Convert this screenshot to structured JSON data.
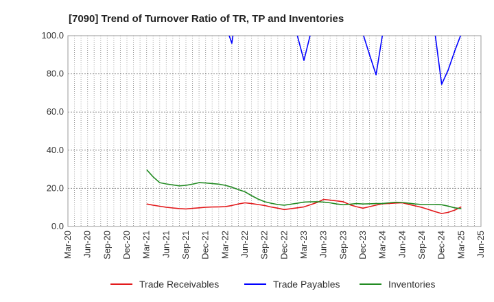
{
  "chart_data": {
    "type": "line",
    "title": "[7090]  Trend of Turnover Ratio of TR, TP and Inventories",
    "xlabel": "",
    "ylabel": "",
    "ylim": [
      0,
      100
    ],
    "yticks": [
      "0.0",
      "20.0",
      "40.0",
      "60.0",
      "80.0",
      "100.0"
    ],
    "xticks": [
      "Mar-20",
      "Jun-20",
      "Sep-20",
      "Dec-20",
      "Mar-21",
      "Jun-21",
      "Sep-21",
      "Dec-21",
      "Mar-22",
      "Jun-22",
      "Sep-22",
      "Dec-22",
      "Mar-23",
      "Jun-23",
      "Sep-23",
      "Dec-23",
      "Mar-24",
      "Jun-24",
      "Sep-24",
      "Dec-24",
      "Mar-25",
      "Jun-25"
    ],
    "grid": true,
    "legend_position": "bottom",
    "x": [
      "Mar-21",
      "Apr-21",
      "May-21",
      "Jun-21",
      "Jul-21",
      "Aug-21",
      "Sep-21",
      "Oct-21",
      "Nov-21",
      "Dec-21",
      "Jan-22",
      "Feb-22",
      "Mar-22",
      "Apr-22",
      "May-22",
      "Jun-22",
      "Jul-22",
      "Aug-22",
      "Sep-22",
      "Oct-22",
      "Nov-22",
      "Dec-22",
      "Jan-23",
      "Feb-23",
      "Mar-23",
      "Apr-23",
      "May-23",
      "Jun-23",
      "Jul-23",
      "Aug-23",
      "Sep-23",
      "Oct-23",
      "Nov-23",
      "Dec-23",
      "Jan-24",
      "Feb-24",
      "Mar-24",
      "Apr-24",
      "May-24",
      "Jun-24",
      "Jul-24",
      "Aug-24",
      "Sep-24",
      "Oct-24",
      "Nov-24",
      "Dec-24",
      "Jan-25",
      "Feb-25",
      "Mar-25"
    ],
    "series": [
      {
        "name": "Trade Receivables",
        "color": "#e31a1c",
        "values": [
          11.8,
          11.2,
          10.6,
          10.1,
          9.7,
          9.4,
          9.2,
          9.5,
          9.8,
          10.1,
          10.2,
          10.3,
          10.4,
          11.0,
          11.8,
          12.4,
          12.0,
          11.5,
          11.0,
          10.2,
          9.6,
          8.9,
          9.3,
          9.8,
          10.3,
          11.4,
          12.6,
          14.2,
          13.8,
          13.4,
          13.0,
          11.4,
          10.4,
          9.6,
          10.4,
          11.2,
          11.9,
          12.1,
          12.3,
          12.4,
          11.6,
          10.8,
          10.0,
          8.9,
          7.8,
          6.8,
          7.4,
          8.6,
          10.3
        ]
      },
      {
        "name": "Trade Payables",
        "color": "#0000ff",
        "values": [
          null,
          null,
          null,
          null,
          null,
          null,
          null,
          null,
          null,
          null,
          null,
          null,
          106.0,
          96.0,
          120.0,
          null,
          null,
          null,
          null,
          null,
          null,
          null,
          110.0,
          100.0,
          87.0,
          101.0,
          130.0,
          null,
          null,
          null,
          null,
          null,
          115.0,
          101.0,
          90.0,
          79.5,
          101.0,
          125.0,
          null,
          null,
          null,
          null,
          null,
          120.0,
          101.0,
          74.5,
          82.0,
          92.0,
          101.0
        ]
      },
      {
        "name": "Inventories",
        "color": "#228b22",
        "values": [
          29.8,
          26.0,
          23.0,
          22.3,
          21.8,
          21.3,
          21.6,
          22.2,
          23.0,
          22.8,
          22.5,
          22.2,
          21.6,
          20.6,
          19.3,
          18.2,
          16.2,
          14.4,
          13.0,
          12.2,
          11.5,
          11.2,
          11.7,
          12.2,
          12.8,
          12.9,
          13.0,
          12.8,
          12.4,
          11.8,
          11.4,
          11.7,
          12.0,
          11.8,
          11.9,
          12.0,
          12.1,
          12.4,
          12.7,
          12.6,
          12.2,
          11.8,
          11.5,
          11.5,
          11.5,
          11.4,
          10.7,
          9.8,
          9.3
        ]
      }
    ]
  }
}
